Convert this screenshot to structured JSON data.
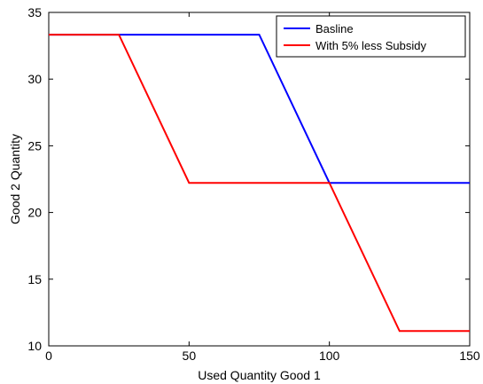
{
  "chart_data": {
    "type": "line",
    "xlabel": "Used Quantity Good 1",
    "ylabel": "Good 2 Quantity",
    "xlim": [
      0,
      150
    ],
    "ylim": [
      10,
      35
    ],
    "xticks": [
      0,
      50,
      100,
      150
    ],
    "yticks": [
      10,
      15,
      20,
      25,
      30,
      35
    ],
    "grid": false,
    "legend_position": "top-right",
    "series": [
      {
        "name": "Basline",
        "color": "#0000ff",
        "x": [
          0,
          75,
          100,
          150
        ],
        "y": [
          33.33,
          33.33,
          22.22,
          22.22
        ]
      },
      {
        "name": "With 5% less Subsidy",
        "color": "#ff0000",
        "x": [
          0,
          25,
          50,
          100,
          125,
          150
        ],
        "y": [
          33.33,
          33.33,
          22.22,
          22.22,
          11.11,
          11.11
        ]
      }
    ]
  }
}
